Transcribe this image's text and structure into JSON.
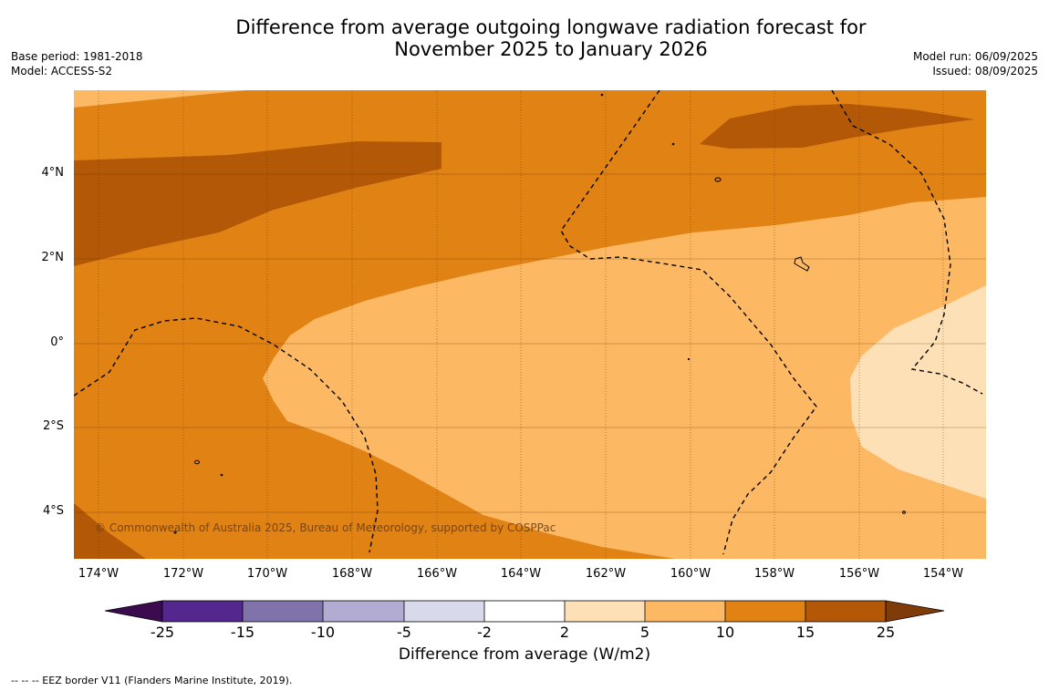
{
  "title": {
    "line1": "Difference from average outgoing longwave radiation forecast for",
    "line2": "November 2025 to January 2026"
  },
  "meta_left": {
    "base_period": "Base period: 1981-2018",
    "model": "Model: ACCESS-S2"
  },
  "meta_right": {
    "model_run": "Model run: 06/09/2025",
    "issued": "Issued: 08/09/2025"
  },
  "map": {
    "lat_labels": [
      "4°N",
      "2°N",
      "0°",
      "2°S",
      "4°S"
    ],
    "lon_labels": [
      "174°W",
      "172°W",
      "170°W",
      "168°W",
      "166°W",
      "164°W",
      "162°W",
      "160°W",
      "158°W",
      "156°W",
      "154°W"
    ],
    "copyright": "© Commonwealth of Australia 2025, Bureau of Meteorology, supported by COSPPac"
  },
  "colorbar": {
    "tick_labels": [
      "-25",
      "-15",
      "-10",
      "-5",
      "-2",
      "2",
      "5",
      "10",
      "15",
      "25"
    ],
    "title": "Difference from average (W/m2)",
    "colors": {
      "below": "#3b0a4f",
      "b1": "#54278f",
      "b2": "#8073ac",
      "b3": "#b2abd2",
      "b4": "#d8daeb",
      "b5": "#ffffff",
      "b6": "#fee0b6",
      "b7": "#fdb863",
      "b8": "#e08214",
      "b9": "#b35806",
      "above": "#7f3b08"
    }
  },
  "footnote": "--  --  -- EEZ border V11 (Flanders Marine Institute, 2019)."
}
